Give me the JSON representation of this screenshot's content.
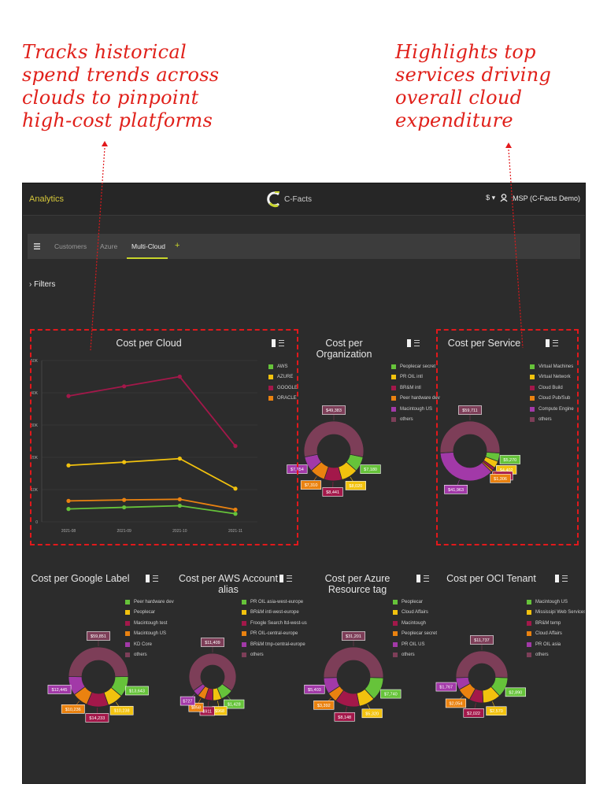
{
  "callouts": {
    "left": [
      "Tracks historical",
      "spend trends across",
      "clouds to pinpoint",
      "high-cost platforms"
    ],
    "right": [
      "Highlights top",
      "services driving",
      "overall cloud",
      "expenditure"
    ]
  },
  "app": {
    "title": "Analytics",
    "logo_text": "C-Facts",
    "currency": "$",
    "account": "MSP (C-Facts Demo)"
  },
  "tabs": [
    "Customers",
    "Azure",
    "Multi-Cloud",
    "+"
  ],
  "filters_label": "Filters",
  "colors": {
    "green": "#66c33a",
    "yellow": "#f2c20e",
    "crimson": "#a3184a",
    "orange": "#ea8210",
    "purple": "#a239a8",
    "rose": "#7d3e58",
    "highlight": "#e2181b"
  },
  "chart_data": [
    {
      "type": "line",
      "title": "Cost per Cloud",
      "x": [
        "2021-08",
        "2021-09",
        "2021-10",
        "2021-11"
      ],
      "yticks": [
        "0",
        "10K",
        "20K",
        "30K",
        "40K",
        "50K"
      ],
      "ylim": [
        0,
        50000
      ],
      "series": [
        {
          "name": "AWS",
          "values": [
            4000,
            4500,
            5000,
            2500
          ]
        },
        {
          "name": "AZURE",
          "values": [
            17500,
            18500,
            19600,
            10300
          ]
        },
        {
          "name": "GOOGLE",
          "values": [
            39000,
            42000,
            45000,
            23500
          ]
        },
        {
          "name": "ORACLE",
          "values": [
            6500,
            6800,
            7000,
            3800
          ]
        }
      ],
      "legend": "top-right",
      "grid": true
    },
    {
      "type": "pie",
      "title": "Cost per Organization",
      "legend": [
        "Peoplecar secret",
        "PR OIL intl",
        "BR&M intl",
        "Peer hardware dev",
        "Macintough US",
        "others"
      ],
      "values": [
        7180,
        8020,
        8441,
        7310,
        7154,
        49383
      ],
      "data_labels": [
        "$7,180",
        "$8,020",
        "$8,441",
        "$7,310",
        "$7,154",
        "$49,383"
      ]
    },
    {
      "type": "pie",
      "title": "Cost per Service",
      "legend": [
        "Virtual Machines",
        "Virtual Network",
        "Cloud Build",
        "Cloud Pub/Sub",
        "Compute Engine",
        "others"
      ],
      "values": [
        5270,
        4402,
        1844,
        1306,
        41963,
        59711
      ],
      "data_labels": [
        "$5,270",
        "$4,402",
        "$1,844",
        "$1,306",
        "$41,963",
        "$59,711"
      ]
    },
    {
      "type": "pie",
      "title": "Cost per Google Label",
      "legend": [
        "Peer hardware dev",
        "Peoplecar",
        "Macintough test",
        "Macintough US",
        "KD Core",
        "others"
      ],
      "values": [
        13643,
        10238,
        14233,
        10236,
        12445,
        59851
      ],
      "data_labels": [
        "$13,643",
        "$10,238",
        "$14,233",
        "$10,236",
        "$12,445",
        "$59,851"
      ]
    },
    {
      "type": "pie",
      "title": "Cost per AWS Account alias",
      "legend": [
        "PR OIL asia-west-europe",
        "BR&M intl-west-europe",
        "Froogle Search ltd-west-us",
        "PR OIL-central-europe",
        "BR&M tmp-central-europe",
        "others"
      ],
      "values": [
        1428,
        968,
        911,
        858,
        727,
        11409
      ],
      "data_labels": [
        "$1,428",
        "$968",
        "$911",
        "$858",
        "$727",
        "$11,409"
      ]
    },
    {
      "type": "pie",
      "title": "Cost per Azure Resource tag",
      "legend": [
        "Peoplecar",
        "Cloud Affairs",
        "Macintough",
        "Peoplecar secret",
        "PR OIL US",
        "others"
      ],
      "values": [
        7740,
        5320,
        8148,
        3392,
        5403,
        31201
      ],
      "data_labels": [
        "$7,740",
        "$5,320",
        "$8,148",
        "$3,392",
        "$5,403",
        "$31,201"
      ]
    },
    {
      "type": "pie",
      "title": "Cost per OCI Tenant",
      "legend": [
        "Macintough US",
        "Mississipi Web Services",
        "BR&M temp",
        "Cloud Affairs",
        "PR OIL asia",
        "others"
      ],
      "values": [
        2890,
        2570,
        2022,
        2054,
        1767,
        11737
      ],
      "data_labels": [
        "$2,890",
        "$2,570",
        "$2,022",
        "$2,054",
        "$1,767",
        "$11,737"
      ]
    }
  ]
}
